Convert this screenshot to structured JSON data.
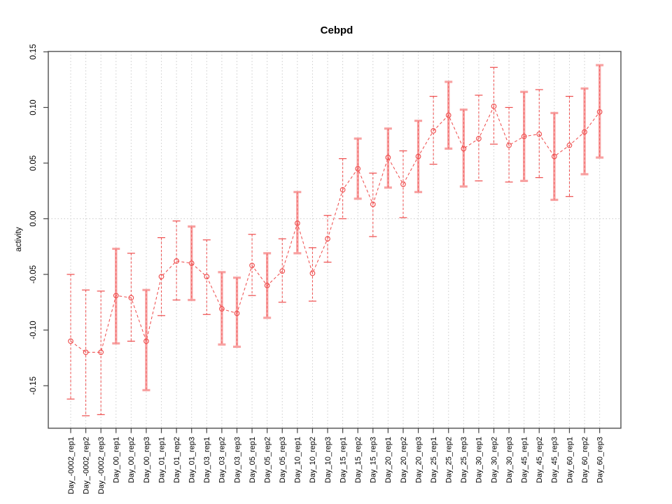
{
  "title": "Cebpd",
  "y_axis_label": "activity",
  "chart_data": {
    "type": "line",
    "title": "Cebpd",
    "xlabel": "",
    "ylabel": "activity",
    "ylim": [
      -0.188,
      0.15
    ],
    "y_ticks": [
      0.15,
      0.1,
      0.05,
      0.0,
      -0.05,
      -0.1,
      -0.15
    ],
    "y_tick_labels": [
      "0.15",
      "0.10",
      "0.05",
      "0.00",
      "-0.05",
      "-0.10",
      "-0.15"
    ],
    "grid": "vertical dotted line at every category; horizontal dotted line at y=0 only",
    "legend_position": "none",
    "point_marker": "open-circle",
    "line_style": "dashed",
    "categories": [
      "Day_-0002_rep1",
      "Day_-0002_rep2",
      "Day_-0002_rep3",
      "Day_00_rep1",
      "Day_00_rep2",
      "Day_00_rep3",
      "Day_01_rep1",
      "Day_01_rep2",
      "Day_01_rep3",
      "Day_03_rep1",
      "Day_03_rep2",
      "Day_03_rep3",
      "Day_05_rep1",
      "Day_05_rep2",
      "Day_05_rep3",
      "Day_10_rep1",
      "Day_10_rep2",
      "Day_10_rep3",
      "Day_15_rep1",
      "Day_15_rep2",
      "Day_15_rep3",
      "Day_20_rep1",
      "Day_20_rep2",
      "Day_20_rep3",
      "Day_25_rep1",
      "Day_25_rep2",
      "Day_25_rep3",
      "Day_30_rep1",
      "Day_30_rep2",
      "Day_30_rep3",
      "Day_45_rep1",
      "Day_45_rep2",
      "Day_45_rep3",
      "Day_60_rep1",
      "Day_60_rep2",
      "Day_60_rep3"
    ],
    "series": [
      {
        "name": "activity",
        "values": [
          -0.11,
          -0.12,
          -0.12,
          -0.069,
          -0.071,
          -0.11,
          -0.052,
          -0.038,
          -0.04,
          -0.052,
          -0.081,
          -0.085,
          -0.042,
          -0.06,
          -0.047,
          -0.004,
          -0.049,
          -0.018,
          0.026,
          0.045,
          0.013,
          0.055,
          0.031,
          0.056,
          0.079,
          0.093,
          0.063,
          0.072,
          0.101,
          0.066,
          0.074,
          0.076,
          0.056,
          0.066,
          0.078,
          0.096
        ],
        "error_low": [
          -0.162,
          -0.177,
          -0.176,
          -0.112,
          -0.11,
          -0.154,
          -0.087,
          -0.073,
          -0.073,
          -0.086,
          -0.113,
          -0.115,
          -0.069,
          -0.089,
          -0.075,
          -0.031,
          -0.074,
          -0.039,
          0.0,
          0.018,
          -0.016,
          0.028,
          0.001,
          0.024,
          0.049,
          0.063,
          0.029,
          0.034,
          0.067,
          0.033,
          0.034,
          0.037,
          0.017,
          0.02,
          0.04,
          0.055
        ],
        "error_high": [
          -0.05,
          -0.064,
          -0.065,
          -0.027,
          -0.031,
          -0.064,
          -0.017,
          -0.002,
          -0.007,
          -0.019,
          -0.048,
          -0.053,
          -0.014,
          -0.031,
          -0.018,
          0.024,
          -0.026,
          0.003,
          0.054,
          0.072,
          0.041,
          0.081,
          0.061,
          0.088,
          0.11,
          0.123,
          0.098,
          0.111,
          0.136,
          0.1,
          0.114,
          0.116,
          0.095,
          0.11,
          0.117,
          0.138
        ],
        "error_bar_style": [
          "thin",
          "thin",
          "thin",
          "thick",
          "thin",
          "thick",
          "thin",
          "thin",
          "thick",
          "thin",
          "thick",
          "thick",
          "thin",
          "thick",
          "thin",
          "thick",
          "thin",
          "thin",
          "thin",
          "thick",
          "thin",
          "thick",
          "thin",
          "thick",
          "thin",
          "thick",
          "thick",
          "thin",
          "thin",
          "thin",
          "thick",
          "thin",
          "thick",
          "thin",
          "thick",
          "thick"
        ]
      }
    ],
    "colors": {
      "line": "#ef5050",
      "point": "#ef5050",
      "error_thin": "#ee4c4c",
      "error_thick": "#f8a2a2",
      "grid": "#cccccc",
      "axis_box": "#5a5a5a",
      "tick": "#454545",
      "text": "#000000",
      "background": "#ffffff"
    }
  }
}
